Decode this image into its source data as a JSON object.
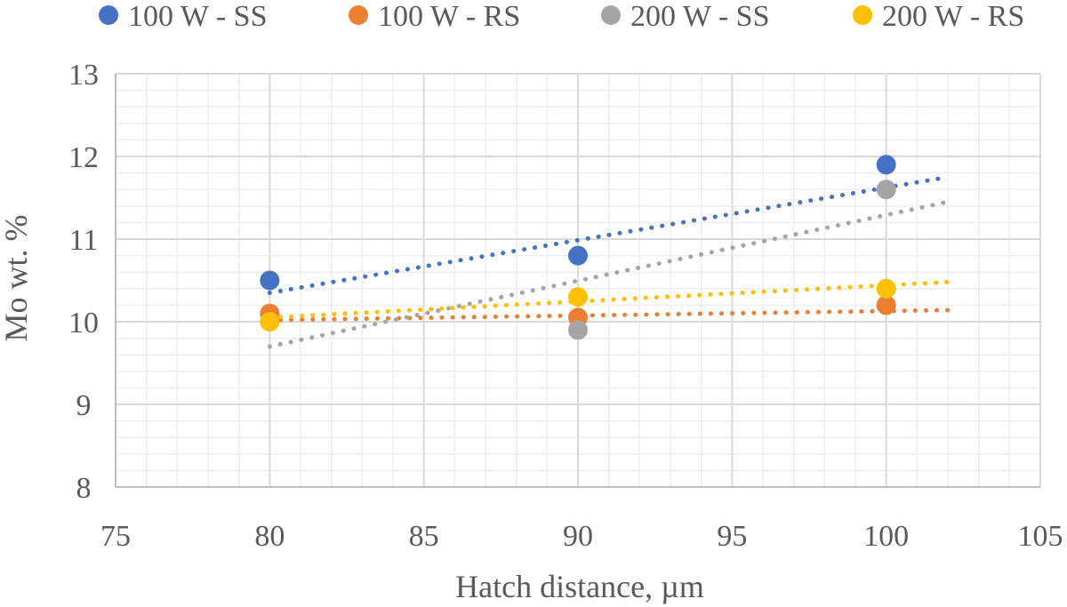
{
  "chart_data": {
    "type": "scatter",
    "title": "",
    "xlabel": "Hatch distance, µm",
    "ylabel": "Mo wt. %",
    "xlim": [
      75,
      105
    ],
    "ylim": [
      8,
      13
    ],
    "xticks": [
      75,
      80,
      85,
      90,
      95,
      100,
      105
    ],
    "yticks": [
      8,
      9,
      10,
      11,
      12,
      13
    ],
    "grid": true,
    "legend": "top",
    "trendline": "linear, dotted",
    "series": [
      {
        "name": "100 W - SS",
        "color": "#4472C4",
        "x": [
          80,
          90,
          100
        ],
        "y": [
          10.5,
          10.8,
          11.9
        ],
        "trend": [
          10.35,
          11.75
        ]
      },
      {
        "name": "100 W - RS",
        "color": "#ED7D31",
        "x": [
          80,
          90,
          100
        ],
        "y": [
          10.1,
          10.05,
          10.2
        ],
        "trend": [
          10.02,
          10.14
        ]
      },
      {
        "name": "200 W - SS",
        "color": "#A5A5A5",
        "x": [
          80,
          90,
          100
        ],
        "y": [
          10.0,
          9.9,
          11.6
        ],
        "trend": [
          9.7,
          11.45
        ]
      },
      {
        "name": "200 W - RS",
        "color": "#FFC000",
        "x": [
          80,
          90,
          100
        ],
        "y": [
          10.0,
          10.3,
          10.4
        ],
        "trend": [
          10.05,
          10.48
        ]
      }
    ]
  }
}
